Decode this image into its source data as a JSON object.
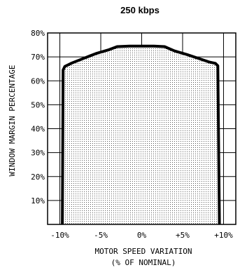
{
  "chart_data": {
    "type": "area",
    "title": "250 kbps",
    "xlabel_lines": [
      "MOTOR SPEED VARIATION",
      "(% OF NOMINAL)"
    ],
    "ylabel": "WINDOW MARGIN PERCENTAGE",
    "xlim": [
      -10,
      10
    ],
    "ylim": [
      0,
      80
    ],
    "x_ticks": [
      -10,
      -5,
      0,
      5,
      10
    ],
    "x_tick_labels": [
      "-10%",
      "-5%",
      "0%",
      "+5%",
      "+10%"
    ],
    "y_ticks": [
      10,
      20,
      30,
      40,
      50,
      60,
      70,
      80
    ],
    "y_tick_labels": [
      "10%",
      "20%",
      "30%",
      "40%",
      "50%",
      "60%",
      "70%",
      "80%"
    ],
    "grid": true,
    "fill_pattern": "dotted",
    "series": [
      {
        "x": [
          -9.7,
          -9.6,
          -9.4,
          -8.5,
          -7,
          -5.5,
          -4,
          -3,
          -1.5,
          0,
          1.5,
          2.8,
          4,
          5.5,
          7,
          8.3,
          9,
          9.3,
          9.5
        ],
        "y": [
          0,
          64.5,
          66,
          67.5,
          69.5,
          71.5,
          73,
          74.3,
          74.5,
          74.5,
          74.5,
          74.3,
          72.5,
          71,
          69.3,
          67.8,
          67.3,
          66.3,
          0
        ]
      }
    ]
  }
}
